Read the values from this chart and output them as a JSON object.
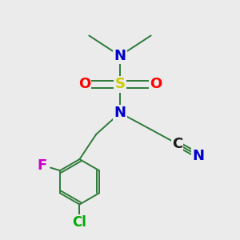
{
  "background_color": "#ebebeb",
  "bond_color": "#2d7a3a",
  "atom_colors": {
    "S": "#cccc00",
    "O": "#ff0000",
    "N": "#0000cc",
    "F": "#cc00cc",
    "Cl": "#00aa00",
    "C": "#1a1a1a"
  },
  "figsize": [
    3.0,
    3.0
  ],
  "dpi": 100
}
